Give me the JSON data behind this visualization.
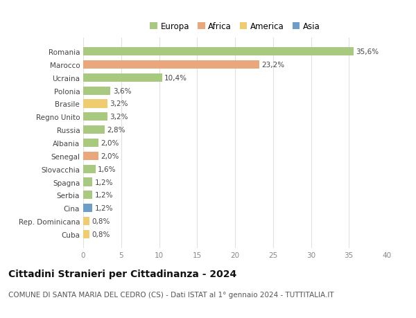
{
  "countries": [
    "Romania",
    "Marocco",
    "Ucraina",
    "Polonia",
    "Brasile",
    "Regno Unito",
    "Russia",
    "Albania",
    "Senegal",
    "Slovacchia",
    "Spagna",
    "Serbia",
    "Cina",
    "Rep. Dominicana",
    "Cuba"
  ],
  "values": [
    35.6,
    23.2,
    10.4,
    3.6,
    3.2,
    3.2,
    2.8,
    2.0,
    2.0,
    1.6,
    1.2,
    1.2,
    1.2,
    0.8,
    0.8
  ],
  "labels": [
    "35,6%",
    "23,2%",
    "10,4%",
    "3,6%",
    "3,2%",
    "3,2%",
    "2,8%",
    "2,0%",
    "2,0%",
    "1,6%",
    "1,2%",
    "1,2%",
    "1,2%",
    "0,8%",
    "0,8%"
  ],
  "continents": [
    "Europa",
    "Africa",
    "Europa",
    "Europa",
    "America",
    "Europa",
    "Europa",
    "Europa",
    "Africa",
    "Europa",
    "Europa",
    "Europa",
    "Asia",
    "America",
    "America"
  ],
  "continent_colors": {
    "Europa": "#a8c97f",
    "Africa": "#e8a87c",
    "America": "#f0cc70",
    "Asia": "#6e9dc8"
  },
  "xlim": [
    0,
    40
  ],
  "xticks": [
    0,
    5,
    10,
    15,
    20,
    25,
    30,
    35,
    40
  ],
  "title": "Cittadini Stranieri per Cittadinanza - 2024",
  "subtitle": "COMUNE DI SANTA MARIA DEL CEDRO (CS) - Dati ISTAT al 1° gennaio 2024 - TUTTITALIA.IT",
  "background_color": "#ffffff",
  "grid_color": "#e0e0e0",
  "bar_fontsize": 7.5,
  "ytick_fontsize": 7.5,
  "xtick_fontsize": 7.5,
  "legend_fontsize": 8.5,
  "title_fontsize": 10,
  "subtitle_fontsize": 7.5,
  "legend_order": [
    "Europa",
    "Africa",
    "America",
    "Asia"
  ]
}
